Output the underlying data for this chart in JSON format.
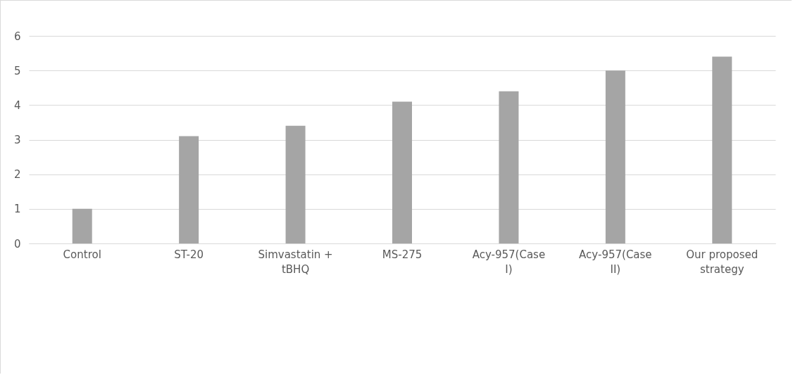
{
  "chart_data": {
    "type": "bar",
    "categories": [
      "Control",
      "ST-20",
      "Simvastatin + tBHQ",
      "MS-275",
      "Acy-957(Case I)",
      "Acy-957(Case II)",
      "Our proposed strategy"
    ],
    "values": [
      1,
      3.1,
      3.4,
      4.1,
      4.4,
      5,
      5.4
    ],
    "color": "#a5a5a5",
    "ylim": [
      0,
      6
    ],
    "yticks": [
      0,
      1,
      2,
      3,
      4,
      5,
      6
    ],
    "grid": "y"
  }
}
